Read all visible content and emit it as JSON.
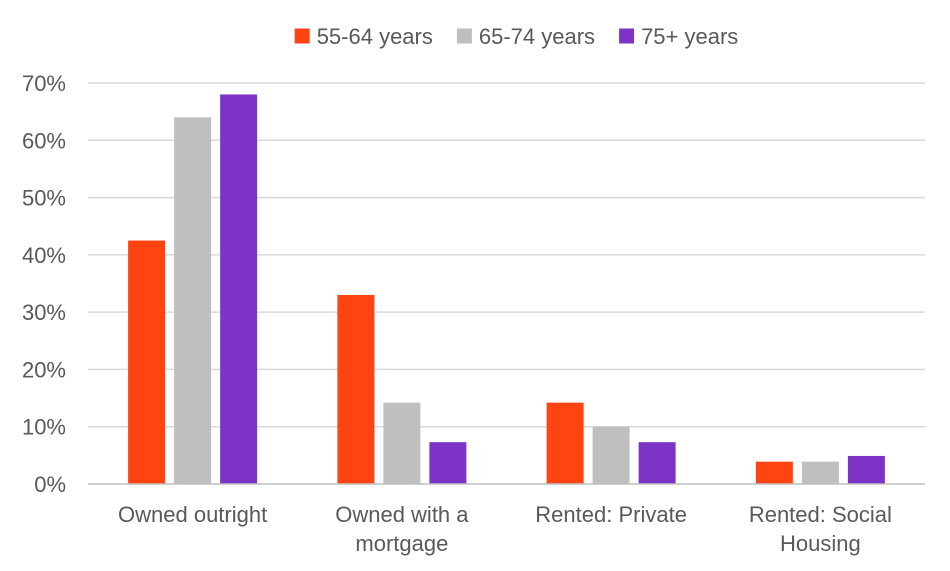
{
  "chart_data": {
    "type": "bar",
    "categories": [
      [
        "Owned outright"
      ],
      [
        "Owned with a",
        "mortgage"
      ],
      [
        "Rented: Private"
      ],
      [
        "Rented: Social",
        "Housing"
      ]
    ],
    "series": [
      {
        "name": "55-64 years",
        "color": "#ff4411",
        "values": [
          42.5,
          33,
          14.2,
          3.9
        ]
      },
      {
        "name": "65-74 years",
        "color": "#bfbfbf",
        "values": [
          64,
          14.2,
          10,
          3.9
        ]
      },
      {
        "name": "75+ years",
        "color": "#7e33c7",
        "values": [
          68,
          7.3,
          7.3,
          4.9
        ]
      }
    ],
    "ylim": [
      0,
      70
    ],
    "y_ticks": [
      0,
      10,
      20,
      30,
      40,
      50,
      60,
      70
    ],
    "y_tick_labels": [
      "0%",
      "10%",
      "20%",
      "30%",
      "40%",
      "50%",
      "60%",
      "70%"
    ],
    "grid": true,
    "legend_position": "top-center",
    "gridline_color": "#d9d9d9",
    "axis_color": "#bfbfbf"
  }
}
